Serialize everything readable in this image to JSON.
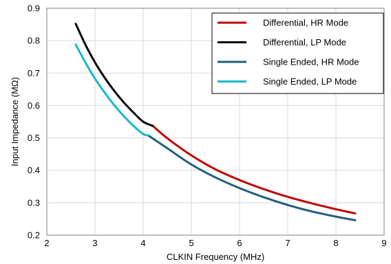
{
  "chart_data": {
    "type": "line",
    "title": "",
    "xlabel": "CLKIN Frequency (MHz)",
    "ylabel": "Input Impedance (MΩ)",
    "xlim": [
      2,
      9
    ],
    "ylim": [
      0.2,
      0.9
    ],
    "x_ticks": [
      2,
      3,
      4,
      5,
      6,
      7,
      8,
      9
    ],
    "y_ticks": [
      0.2,
      0.3,
      0.4,
      0.5,
      0.6,
      0.7,
      0.8,
      0.9
    ],
    "x_tick_labels": [
      "2",
      "3",
      "4",
      "5",
      "6",
      "7",
      "8",
      "9"
    ],
    "y_tick_labels": [
      "0.2",
      "0.3",
      "0.4",
      "0.5",
      "0.6",
      "0.7",
      "0.8",
      "0.9"
    ],
    "grid": true,
    "legend_position": "top-right",
    "series": [
      {
        "name": "Differential, HR Mode",
        "color": "#c00000",
        "x": [
          4.2,
          4.5,
          5.0,
          5.5,
          6.0,
          6.5,
          7.0,
          7.5,
          8.0,
          8.4
        ],
        "y": [
          0.537,
          0.499,
          0.446,
          0.403,
          0.37,
          0.342,
          0.318,
          0.298,
          0.28,
          0.267
        ]
      },
      {
        "name": "Differential, LP Mode",
        "color": "#000000",
        "x": [
          2.6,
          2.8,
          3.0,
          3.2,
          3.4,
          3.6,
          3.8,
          4.0,
          4.2
        ],
        "y": [
          0.852,
          0.788,
          0.733,
          0.686,
          0.645,
          0.609,
          0.578,
          0.55,
          0.537
        ]
      },
      {
        "name": "Single Ended, HR Mode",
        "color": "#1f5f7a",
        "x": [
          4.1,
          4.5,
          5.0,
          5.5,
          6.0,
          6.5,
          7.0,
          7.5,
          8.0,
          8.4
        ],
        "y": [
          0.508,
          0.468,
          0.418,
          0.378,
          0.345,
          0.317,
          0.293,
          0.273,
          0.257,
          0.246
        ]
      },
      {
        "name": "Single Ended, LP Mode",
        "color": "#17b8cf",
        "x": [
          2.6,
          2.8,
          3.0,
          3.2,
          3.4,
          3.6,
          3.8,
          4.0,
          4.1
        ],
        "y": [
          0.788,
          0.733,
          0.683,
          0.64,
          0.601,
          0.567,
          0.537,
          0.512,
          0.508
        ]
      }
    ]
  }
}
